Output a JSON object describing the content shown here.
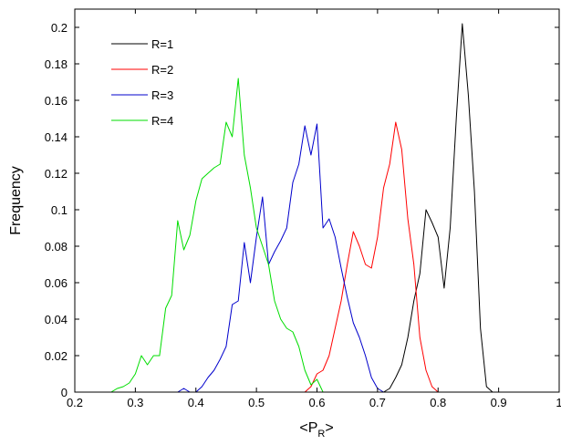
{
  "chart_data": {
    "type": "line",
    "xlabel": "<P",
    "xlabel_sub": "R",
    "xlabel_end": ">",
    "ylabel": "Frequency",
    "xlim": [
      0.2,
      1.0
    ],
    "ylim": [
      0,
      0.21
    ],
    "xticks": [
      0.2,
      0.3,
      0.4,
      0.5,
      0.6,
      0.7,
      0.8,
      0.9,
      1.0
    ],
    "xtick_labels": [
      "0.2",
      "0.3",
      "0.4",
      "0.5",
      "0.6",
      "0.7",
      "0.8",
      "0.9",
      "1"
    ],
    "yticks": [
      0,
      0.02,
      0.04,
      0.06,
      0.08,
      0.1,
      0.12,
      0.14,
      0.16,
      0.18,
      0.2
    ],
    "ytick_labels": [
      "0",
      "0.02",
      "0.04",
      "0.06",
      "0.08",
      "0.1",
      "0.12",
      "0.14",
      "0.16",
      "0.18",
      "0.2"
    ],
    "grid": false,
    "legend_position": "top-left",
    "series": [
      {
        "name": "R=1",
        "color": "#000000",
        "x": [
          0.7,
          0.71,
          0.72,
          0.73,
          0.74,
          0.75,
          0.76,
          0.77,
          0.78,
          0.79,
          0.8,
          0.81,
          0.82,
          0.83,
          0.84,
          0.85,
          0.86,
          0.87,
          0.88,
          0.89
        ],
        "y": [
          0.0,
          0.0,
          0.002,
          0.008,
          0.015,
          0.03,
          0.05,
          0.065,
          0.1,
          0.093,
          0.085,
          0.057,
          0.09,
          0.15,
          0.202,
          0.163,
          0.11,
          0.035,
          0.003,
          0.0
        ]
      },
      {
        "name": "R=2",
        "color": "#ff0000",
        "x": [
          0.58,
          0.59,
          0.6,
          0.61,
          0.62,
          0.63,
          0.64,
          0.65,
          0.66,
          0.67,
          0.68,
          0.69,
          0.7,
          0.71,
          0.72,
          0.73,
          0.74,
          0.75,
          0.76,
          0.77,
          0.78,
          0.79,
          0.8
        ],
        "y": [
          0.0,
          0.003,
          0.01,
          0.012,
          0.02,
          0.035,
          0.05,
          0.07,
          0.088,
          0.08,
          0.07,
          0.068,
          0.085,
          0.112,
          0.125,
          0.148,
          0.133,
          0.095,
          0.07,
          0.03,
          0.012,
          0.003,
          0.0
        ]
      },
      {
        "name": "R=3",
        "color": "#0000cc",
        "x": [
          0.37,
          0.38,
          0.39,
          0.4,
          0.41,
          0.42,
          0.43,
          0.44,
          0.45,
          0.46,
          0.47,
          0.48,
          0.49,
          0.5,
          0.51,
          0.52,
          0.53,
          0.54,
          0.55,
          0.56,
          0.57,
          0.58,
          0.59,
          0.6,
          0.61,
          0.62,
          0.63,
          0.64,
          0.65,
          0.66,
          0.67,
          0.68,
          0.69,
          0.7,
          0.71
        ],
        "y": [
          0.0,
          0.002,
          0.0,
          0.0,
          0.003,
          0.008,
          0.012,
          0.018,
          0.025,
          0.048,
          0.05,
          0.082,
          0.06,
          0.085,
          0.107,
          0.07,
          0.077,
          0.083,
          0.09,
          0.115,
          0.125,
          0.146,
          0.13,
          0.147,
          0.09,
          0.095,
          0.085,
          0.068,
          0.052,
          0.038,
          0.03,
          0.02,
          0.008,
          0.002,
          0.0
        ]
      },
      {
        "name": "R=4",
        "color": "#00dd00",
        "x": [
          0.26,
          0.27,
          0.28,
          0.29,
          0.3,
          0.31,
          0.32,
          0.33,
          0.34,
          0.35,
          0.36,
          0.37,
          0.38,
          0.39,
          0.4,
          0.41,
          0.42,
          0.43,
          0.44,
          0.45,
          0.46,
          0.47,
          0.48,
          0.49,
          0.5,
          0.51,
          0.52,
          0.53,
          0.54,
          0.55,
          0.56,
          0.57,
          0.58,
          0.59,
          0.6,
          0.61
        ],
        "y": [
          0.0,
          0.002,
          0.003,
          0.005,
          0.01,
          0.02,
          0.015,
          0.02,
          0.02,
          0.046,
          0.053,
          0.094,
          0.078,
          0.086,
          0.105,
          0.117,
          0.12,
          0.123,
          0.125,
          0.148,
          0.14,
          0.172,
          0.13,
          0.112,
          0.09,
          0.08,
          0.07,
          0.05,
          0.04,
          0.035,
          0.033,
          0.025,
          0.012,
          0.004,
          0.007,
          0.0
        ]
      }
    ]
  }
}
